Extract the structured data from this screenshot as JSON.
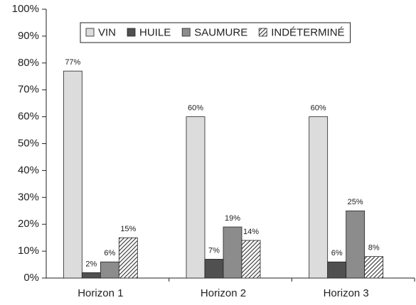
{
  "chart_data": {
    "type": "bar",
    "categories": [
      "Horizon 1",
      "Horizon 2",
      "Horizon 3"
    ],
    "series": [
      {
        "name": "VIN",
        "color": "#dcdcdc",
        "values": [
          77,
          60,
          60
        ],
        "value_labels": [
          "77%",
          "60%",
          "60%"
        ]
      },
      {
        "name": "HUILE",
        "color": "#505050",
        "values": [
          2,
          7,
          6
        ],
        "value_labels": [
          "2%",
          "7%",
          "6%"
        ]
      },
      {
        "name": "SAUMURE",
        "color": "#8c8c8c",
        "values": [
          6,
          19,
          25
        ],
        "value_labels": [
          "6%",
          "19%",
          "25%"
        ]
      },
      {
        "name": "INDÉTERMINÉ",
        "color": "#333333",
        "pattern": "hatch",
        "values": [
          15,
          14,
          8
        ],
        "value_labels": [
          "15%",
          "14%",
          "8%"
        ]
      }
    ],
    "ylim": [
      0,
      100
    ],
    "yticks": [
      {
        "value": 0,
        "label": "0%"
      },
      {
        "value": 10,
        "label": "10%"
      },
      {
        "value": 20,
        "label": "20%"
      },
      {
        "value": 30,
        "label": "30%"
      },
      {
        "value": 40,
        "label": "40%"
      },
      {
        "value": 50,
        "label": "50%"
      },
      {
        "value": 60,
        "label": "60%"
      },
      {
        "value": 70,
        "label": "70%"
      },
      {
        "value": 80,
        "label": "80%"
      },
      {
        "value": 90,
        "label": "90%"
      },
      {
        "value": 100,
        "label": "100%"
      }
    ],
    "grid": false,
    "legend": "top"
  }
}
